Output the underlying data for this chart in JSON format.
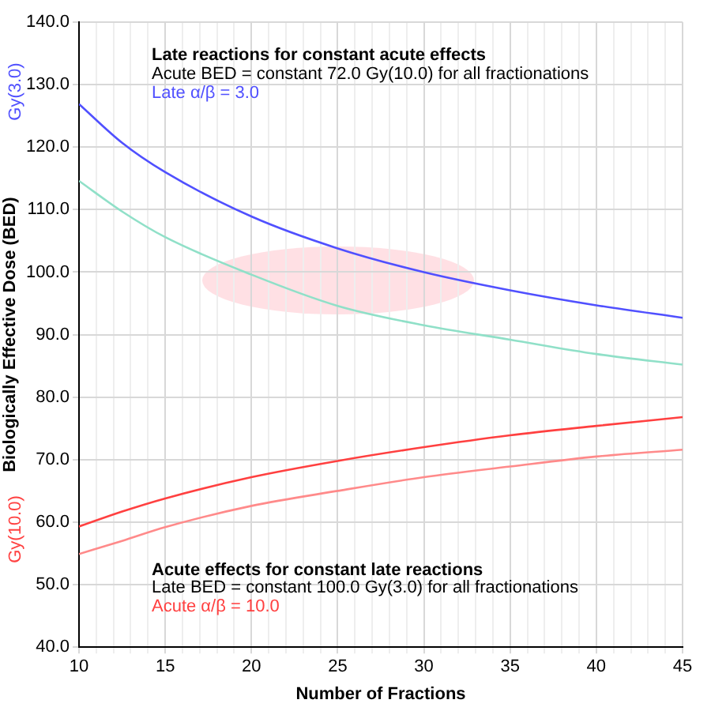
{
  "chart_data": {
    "type": "line",
    "xlabel": "Number of Fractions",
    "ylabel": "Biologically Effective Dose (BED)",
    "x": [
      10,
      12.5,
      15,
      20,
      25,
      30,
      35,
      40,
      45
    ],
    "series": [
      {
        "color": "#5050ff",
        "values": [
          126.9,
          120.7,
          116.0,
          108.9,
          103.8,
          100.0,
          97.1,
          94.7,
          92.7
        ]
      },
      {
        "color": "#90e0c8",
        "values": [
          114.6,
          109.7,
          105.6,
          99.6,
          94.6,
          91.5,
          89.2,
          86.9,
          85.2
        ]
      },
      {
        "color": "#ff4040",
        "values": [
          59.3,
          61.7,
          63.8,
          67.2,
          69.8,
          72.0,
          73.9,
          75.4,
          76.8
        ]
      },
      {
        "color": "#ff8a8a",
        "values": [
          54.9,
          57.0,
          59.2,
          62.6,
          65.0,
          67.2,
          68.9,
          70.5,
          71.6
        ]
      }
    ],
    "xlim": [
      10,
      45
    ],
    "xticks": [
      10,
      {
        "value": 11,
        "label": null
      },
      {
        "value": 12,
        "label": null
      },
      {
        "value": 13,
        "label": null
      },
      {
        "value": 14,
        "label": null
      },
      15,
      {
        "value": 16,
        "label": null
      },
      {
        "value": 17,
        "label": null
      },
      {
        "value": 18,
        "label": null
      },
      {
        "value": 19,
        "label": null
      },
      20,
      {
        "value": 21,
        "label": null
      },
      {
        "value": 22,
        "label": null
      },
      {
        "value": 23,
        "label": null
      },
      {
        "value": 24,
        "label": null
      },
      25,
      {
        "value": 26,
        "label": null
      },
      {
        "value": 27,
        "label": null
      },
      {
        "value": 28,
        "label": null
      },
      {
        "value": 29,
        "label": null
      },
      30,
      {
        "value": 31,
        "label": null
      },
      {
        "value": 32,
        "label": null
      },
      {
        "value": 33,
        "label": null
      },
      {
        "value": 34,
        "label": null
      },
      35,
      {
        "value": 36,
        "label": null
      },
      {
        "value": 37,
        "label": null
      },
      {
        "value": 38,
        "label": null
      },
      {
        "value": 39,
        "label": null
      },
      40,
      {
        "value": 41,
        "label": null
      },
      {
        "value": 42,
        "label": null
      },
      {
        "value": 43,
        "label": null
      },
      {
        "value": 44,
        "label": null
      },
      45
    ],
    "ylim": [
      40,
      140
    ],
    "yticks": [
      {
        "value": 40,
        "label": "40.0"
      },
      {
        "value": 50,
        "label": "50.0"
      },
      {
        "value": 60,
        "label": "60.0"
      },
      {
        "value": 70,
        "label": "70.0"
      },
      {
        "value": 80,
        "label": "80.0"
      },
      {
        "value": 90,
        "label": "90.0"
      },
      {
        "value": 100,
        "label": "100.0"
      },
      {
        "value": 110,
        "label": "110.0"
      },
      {
        "value": 120,
        "label": "120.0"
      },
      {
        "value": 130,
        "label": "130.0"
      },
      {
        "value": 140,
        "label": "140.0"
      }
    ],
    "annotations": [
      "Late reactions for constant acute effects",
      "Acute BED = constant 72.0 Gy(10.0) for all fractionations",
      "Late α/β = 3.0",
      "Acute effects for constant late reactions",
      "Late BED = constant 100.0 Gy(3.0) for all fractionations",
      "Acute α/β = 10.0",
      "Gy(3.0)",
      "Gy(10.0)"
    ],
    "grid": true,
    "legend": false,
    "marker": "none",
    "line_style": "solid"
  }
}
